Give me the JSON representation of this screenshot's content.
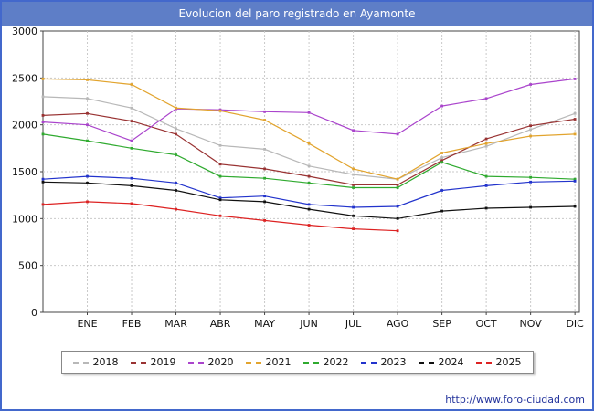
{
  "title": "Evolucion del paro registrado en Ayamonte",
  "footer": {
    "url": "http://www.foro-ciudad.com"
  },
  "chart_data": {
    "type": "line",
    "title": "Evolucion del paro registrado en Ayamonte",
    "xlabel": "",
    "ylabel": "",
    "ylim": [
      0,
      3000
    ],
    "yticks": [
      0,
      500,
      1000,
      1500,
      2000,
      2500,
      3000
    ],
    "grid": true,
    "legend_position": "bottom",
    "months": [
      "ENE",
      "FEB",
      "MAR",
      "ABR",
      "MAY",
      "JUN",
      "JUL",
      "AGO",
      "SEP",
      "OCT",
      "NOV",
      "DIC"
    ],
    "series": [
      {
        "name": "2018",
        "color": "#b8b8b8",
        "start": 2300,
        "values": [
          2280,
          2180,
          1960,
          1780,
          1740,
          1560,
          1470,
          1420,
          1650,
          1770,
          1950,
          2120
        ]
      },
      {
        "name": "2019",
        "color": "#993333",
        "start": 2100,
        "values": [
          2120,
          2040,
          1900,
          1580,
          1530,
          1450,
          1360,
          1360,
          1620,
          1850,
          1990,
          2060
        ]
      },
      {
        "name": "2020",
        "color": "#aa44cc",
        "start": 2030,
        "values": [
          2000,
          1830,
          2170,
          2160,
          2140,
          2130,
          1940,
          1900,
          2200,
          2280,
          2430,
          2490
        ]
      },
      {
        "name": "2021",
        "color": "#e2a42e",
        "start": 2490,
        "values": [
          2480,
          2430,
          2180,
          2150,
          2050,
          1800,
          1530,
          1420,
          1700,
          1800,
          1880,
          1900
        ]
      },
      {
        "name": "2022",
        "color": "#2faa2f",
        "start": 1900,
        "values": [
          1830,
          1750,
          1680,
          1450,
          1430,
          1380,
          1330,
          1330,
          1600,
          1450,
          1440,
          1420
        ]
      },
      {
        "name": "2023",
        "color": "#2233cc",
        "start": 1420,
        "values": [
          1450,
          1430,
          1380,
          1220,
          1240,
          1150,
          1120,
          1130,
          1300,
          1350,
          1390,
          1400
        ]
      },
      {
        "name": "2024",
        "color": "#111111",
        "start": 1390,
        "values": [
          1380,
          1350,
          1300,
          1200,
          1180,
          1100,
          1030,
          1000,
          1080,
          1110,
          1120,
          1130
        ]
      },
      {
        "name": "2025",
        "color": "#dd2222",
        "start": 1150,
        "values": [
          1180,
          1160,
          1100,
          1030,
          980,
          930,
          890,
          870,
          null,
          null,
          null,
          null
        ]
      }
    ]
  }
}
